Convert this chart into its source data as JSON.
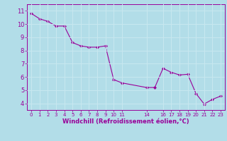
{
  "x": [
    0,
    1,
    2,
    3,
    4,
    5,
    6,
    7,
    8,
    9,
    10,
    11,
    14,
    15,
    16,
    17,
    18,
    19,
    20,
    21,
    22,
    23
  ],
  "y": [
    10.8,
    10.4,
    10.2,
    9.85,
    9.85,
    8.6,
    8.35,
    8.25,
    8.25,
    8.35,
    5.8,
    5.55,
    5.2,
    5.2,
    6.65,
    6.35,
    6.15,
    6.2,
    4.75,
    3.95,
    4.3,
    4.55
  ],
  "line_color": "#990099",
  "marker_color": "#990099",
  "bg_color": "#b2dde8",
  "grid_color": "#c8e8f0",
  "xlabel": "Windchill (Refroidissement éolien,°C)",
  "xlabel_color": "#990099",
  "tick_color": "#990099",
  "ylim": [
    3.5,
    11.5
  ],
  "yticks": [
    4,
    5,
    6,
    7,
    8,
    9,
    10,
    11
  ],
  "xlim": [
    -0.5,
    23.5
  ]
}
